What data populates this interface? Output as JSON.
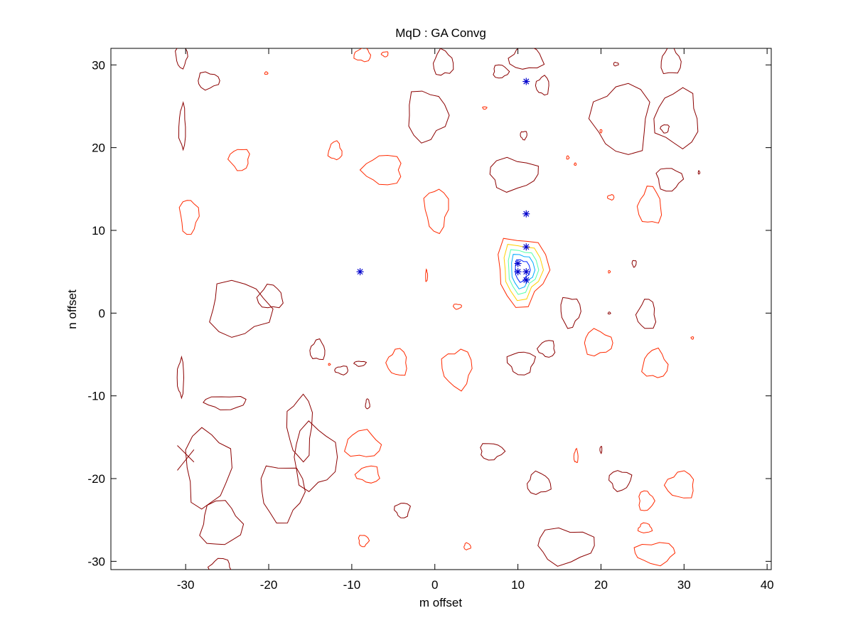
{
  "chart_data": {
    "type": "contour",
    "title": "MqD : GA Convg",
    "xlabel": "m offset",
    "ylabel": "n offset",
    "xlim": [
      -39,
      40.5
    ],
    "ylim": [
      -31,
      32
    ],
    "xticks": [
      -30,
      -20,
      -10,
      0,
      10,
      20,
      30,
      40
    ],
    "yticks": [
      -30,
      -20,
      -10,
      0,
      10,
      20,
      30
    ],
    "xtick_labels": [
      "-30",
      "-20",
      "-10",
      "0",
      "10",
      "20",
      "30",
      "40"
    ],
    "ytick_labels": [
      "-30",
      "-20",
      "-10",
      "0",
      "10",
      "20",
      "30"
    ],
    "grid": false,
    "contour_peak": {
      "center": [
        10.5,
        5.2
      ],
      "levels": [
        {
          "rx": 3.0,
          "ry": 4.1,
          "color": "#ff2a00"
        },
        {
          "rx": 2.3,
          "ry": 3.3,
          "color": "#ffd000"
        },
        {
          "rx": 1.8,
          "ry": 2.6,
          "color": "#55ffaa"
        },
        {
          "rx": 1.4,
          "ry": 2.0,
          "color": "#00aaff"
        },
        {
          "rx": 0.9,
          "ry": 1.3,
          "color": "#0022ff"
        }
      ]
    },
    "contour_blobs": [
      {
        "cx": -30.5,
        "cy": 31,
        "rx": 0.7,
        "ry": 1.3,
        "color": "#8b0000"
      },
      {
        "cx": -27.3,
        "cy": 28.1,
        "rx": 1.3,
        "ry": 1.0,
        "color": "#8b0000"
      },
      {
        "cx": -20.3,
        "cy": 29,
        "rx": 0.2,
        "ry": 0.15,
        "color": "#ff2a00"
      },
      {
        "cx": -30.4,
        "cy": 22.5,
        "rx": 0.4,
        "ry": 2.6,
        "color": "#8b0000"
      },
      {
        "cx": -23.5,
        "cy": 18.6,
        "rx": 1.2,
        "ry": 1.3,
        "color": "#ff2a00"
      },
      {
        "cx": -29.6,
        "cy": 11.7,
        "rx": 1.1,
        "ry": 2.1,
        "color": "#ff2a00"
      },
      {
        "cx": -23.6,
        "cy": 0.5,
        "rx": 3.6,
        "ry": 3.3,
        "color": "#8b0000"
      },
      {
        "cx": -19.8,
        "cy": 1.9,
        "rx": 1.5,
        "ry": 1.4,
        "color": "#8b0000"
      },
      {
        "cx": -30.6,
        "cy": -7.8,
        "rx": 0.4,
        "ry": 2.2,
        "color": "#8b0000"
      },
      {
        "cx": -25.2,
        "cy": -10.8,
        "rx": 2.5,
        "ry": 0.8,
        "color": "#8b0000"
      },
      {
        "cx": -27.4,
        "cy": -18.7,
        "rx": 2.7,
        "ry": 4.6,
        "color": "#8b0000"
      },
      {
        "cx": -25.8,
        "cy": -25.5,
        "rx": 2.4,
        "ry": 2.7,
        "color": "#8b0000"
      },
      {
        "cx": -25.8,
        "cy": -30.7,
        "rx": 1.3,
        "ry": 1.0,
        "color": "#8b0000"
      },
      {
        "cx": -16.2,
        "cy": -13.8,
        "rx": 1.5,
        "ry": 3.8,
        "color": "#8b0000"
      },
      {
        "cx": -18.4,
        "cy": -21.6,
        "rx": 2.6,
        "ry": 3.4,
        "color": "#8b0000"
      },
      {
        "cx": -14.5,
        "cy": -17.4,
        "rx": 2.6,
        "ry": 3.8,
        "color": "#8b0000"
      },
      {
        "cx": -8.7,
        "cy": -15.9,
        "rx": 2.1,
        "ry": 1.6,
        "color": "#ff2a00"
      },
      {
        "cx": -8.0,
        "cy": -19.5,
        "rx": 1.4,
        "ry": 1.0,
        "color": "#ff2a00"
      },
      {
        "cx": -3.9,
        "cy": -23.8,
        "rx": 0.9,
        "ry": 0.9,
        "color": "#8b0000"
      },
      {
        "cx": -8.6,
        "cy": -27.5,
        "rx": 0.6,
        "ry": 0.7,
        "color": "#ff2a00"
      },
      {
        "cx": 3.9,
        "cy": -28.2,
        "rx": 0.4,
        "ry": 0.4,
        "color": "#ff2a00"
      },
      {
        "cx": -14.1,
        "cy": -4.5,
        "rx": 0.9,
        "ry": 1.2,
        "color": "#8b0000"
      },
      {
        "cx": -11.2,
        "cy": -6.9,
        "rx": 0.8,
        "ry": 0.5,
        "color": "#8b0000"
      },
      {
        "cx": -9.0,
        "cy": -6.1,
        "rx": 0.7,
        "ry": 0.3,
        "color": "#8b0000"
      },
      {
        "cx": -12.7,
        "cy": -6.2,
        "rx": 0.12,
        "ry": 0.12,
        "color": "#ff2a00"
      },
      {
        "cx": -8.1,
        "cy": -11.0,
        "rx": 0.25,
        "ry": 0.6,
        "color": "#8b0000"
      },
      {
        "cx": -4.5,
        "cy": -6.0,
        "rx": 1.2,
        "ry": 1.6,
        "color": "#ff2a00"
      },
      {
        "cx": 2.7,
        "cy": -6.7,
        "rx": 1.8,
        "ry": 2.3,
        "color": "#ff2a00"
      },
      {
        "cx": 2.7,
        "cy": 0.8,
        "rx": 0.5,
        "ry": 0.3,
        "color": "#ff2a00"
      },
      {
        "cx": -1.0,
        "cy": 4.5,
        "rx": 0.12,
        "ry": 0.7,
        "color": "#ff2a00"
      },
      {
        "cx": -12.0,
        "cy": 19.6,
        "rx": 0.8,
        "ry": 1.1,
        "color": "#ff2a00"
      },
      {
        "cx": -6.2,
        "cy": 17.3,
        "rx": 2.3,
        "ry": 1.8,
        "color": "#ff2a00"
      },
      {
        "cx": 0.2,
        "cy": 12.5,
        "rx": 1.4,
        "ry": 2.6,
        "color": "#ff2a00"
      },
      {
        "cx": -1.0,
        "cy": 23.9,
        "rx": 2.4,
        "ry": 3.0,
        "color": "#8b0000"
      },
      {
        "cx": 1.0,
        "cy": 30.2,
        "rx": 1.2,
        "ry": 1.5,
        "color": "#8b0000"
      },
      {
        "cx": -8.7,
        "cy": 31.2,
        "rx": 1.0,
        "ry": 0.8,
        "color": "#ff2a00"
      },
      {
        "cx": -6.0,
        "cy": 31.3,
        "rx": 0.4,
        "ry": 0.3,
        "color": "#ff2a00"
      },
      {
        "cx": 6.0,
        "cy": 24.8,
        "rx": 0.25,
        "ry": 0.15,
        "color": "#ff2a00"
      },
      {
        "cx": 7.9,
        "cy": 29.2,
        "rx": 0.9,
        "ry": 0.8,
        "color": "#8b0000"
      },
      {
        "cx": 11.0,
        "cy": 30.8,
        "rx": 2.0,
        "ry": 1.4,
        "color": "#8b0000"
      },
      {
        "cx": 13.0,
        "cy": 27.5,
        "rx": 0.8,
        "ry": 1.1,
        "color": "#8b0000"
      },
      {
        "cx": 10.7,
        "cy": 21.5,
        "rx": 0.4,
        "ry": 0.5,
        "color": "#8b0000"
      },
      {
        "cx": 9.4,
        "cy": 16.8,
        "rx": 2.9,
        "ry": 1.9,
        "color": "#8b0000"
      },
      {
        "cx": 16.0,
        "cy": 18.8,
        "rx": 0.15,
        "ry": 0.2,
        "color": "#ff2a00"
      },
      {
        "cx": 16.9,
        "cy": 18.0,
        "rx": 0.12,
        "ry": 0.15,
        "color": "#ff2a00"
      },
      {
        "cx": 22.5,
        "cy": 23.5,
        "rx": 3.4,
        "ry": 4.2,
        "color": "#8b0000"
      },
      {
        "cx": 20.0,
        "cy": 22.0,
        "rx": 0.12,
        "ry": 0.2,
        "color": "#ff2a00"
      },
      {
        "cx": 21.8,
        "cy": 30.1,
        "rx": 0.3,
        "ry": 0.2,
        "color": "#8b0000"
      },
      {
        "cx": 28.4,
        "cy": 30.4,
        "rx": 1.2,
        "ry": 1.6,
        "color": "#8b0000"
      },
      {
        "cx": 29.2,
        "cy": 23.5,
        "rx": 2.6,
        "ry": 3.4,
        "color": "#8b0000"
      },
      {
        "cx": 27.7,
        "cy": 22.3,
        "rx": 0.5,
        "ry": 0.5,
        "color": "#8b0000"
      },
      {
        "cx": 28.2,
        "cy": 16.2,
        "rx": 1.5,
        "ry": 1.4,
        "color": "#8b0000"
      },
      {
        "cx": 31.8,
        "cy": 17.0,
        "rx": 0.1,
        "ry": 0.2,
        "color": "#8b0000"
      },
      {
        "cx": 25.9,
        "cy": 12.9,
        "rx": 1.4,
        "ry": 2.2,
        "color": "#ff2a00"
      },
      {
        "cx": 21.2,
        "cy": 14.0,
        "rx": 0.4,
        "ry": 0.3,
        "color": "#ff2a00"
      },
      {
        "cx": 24.0,
        "cy": 6.0,
        "rx": 0.25,
        "ry": 0.4,
        "color": "#8b0000"
      },
      {
        "cx": 21.0,
        "cy": 5.0,
        "rx": 0.12,
        "ry": 0.15,
        "color": "#ff2a00"
      },
      {
        "cx": 21.0,
        "cy": 0.0,
        "rx": 0.15,
        "ry": 0.12,
        "color": "#8b0000"
      },
      {
        "cx": 25.5,
        "cy": -0.2,
        "rx": 1.1,
        "ry": 1.8,
        "color": "#8b0000"
      },
      {
        "cx": 31.0,
        "cy": -3.0,
        "rx": 0.15,
        "ry": 0.15,
        "color": "#ff2a00"
      },
      {
        "cx": 16.3,
        "cy": 0.2,
        "rx": 1.2,
        "ry": 1.8,
        "color": "#8b0000"
      },
      {
        "cx": 19.6,
        "cy": -3.6,
        "rx": 1.7,
        "ry": 1.5,
        "color": "#ff2a00"
      },
      {
        "cx": 26.5,
        "cy": -6.2,
        "rx": 1.5,
        "ry": 1.7,
        "color": "#ff2a00"
      },
      {
        "cx": 13.5,
        "cy": -4.3,
        "rx": 1.0,
        "ry": 1.0,
        "color": "#8b0000"
      },
      {
        "cx": 10.4,
        "cy": -6.0,
        "rx": 1.6,
        "ry": 1.4,
        "color": "#8b0000"
      },
      {
        "cx": 6.8,
        "cy": -16.7,
        "rx": 1.4,
        "ry": 1.0,
        "color": "#8b0000"
      },
      {
        "cx": 12.5,
        "cy": -20.6,
        "rx": 1.4,
        "ry": 1.3,
        "color": "#8b0000"
      },
      {
        "cx": 17.0,
        "cy": -17.3,
        "rx": 0.25,
        "ry": 0.8,
        "color": "#ff2a00"
      },
      {
        "cx": 20.0,
        "cy": -16.5,
        "rx": 0.12,
        "ry": 0.4,
        "color": "#8b0000"
      },
      {
        "cx": 22.3,
        "cy": -20.2,
        "rx": 1.3,
        "ry": 1.2,
        "color": "#8b0000"
      },
      {
        "cx": 25.4,
        "cy": -22.7,
        "rx": 0.9,
        "ry": 1.2,
        "color": "#ff2a00"
      },
      {
        "cx": 25.3,
        "cy": -26.0,
        "rx": 0.8,
        "ry": 0.6,
        "color": "#ff2a00"
      },
      {
        "cx": 29.6,
        "cy": -20.8,
        "rx": 1.7,
        "ry": 1.6,
        "color": "#ff2a00"
      },
      {
        "cx": 26.5,
        "cy": -29.0,
        "rx": 2.4,
        "ry": 1.3,
        "color": "#ff2a00"
      },
      {
        "cx": 15.7,
        "cy": -28.1,
        "rx": 3.4,
        "ry": 2.1,
        "color": "#8b0000"
      }
    ],
    "scatter_points": [
      {
        "x": 11,
        "y": 28
      },
      {
        "x": 11,
        "y": 12
      },
      {
        "x": 11,
        "y": 8
      },
      {
        "x": 10,
        "y": 6
      },
      {
        "x": 10,
        "y": 5
      },
      {
        "x": 11,
        "y": 5
      },
      {
        "x": 11,
        "y": 4
      },
      {
        "x": -9,
        "y": 5
      }
    ],
    "marker_color": "#0000cc",
    "extra_marks": [
      {
        "x1": -31.0,
        "y1": -16.0,
        "x2": -29.0,
        "y2": -18.0,
        "color": "#8b0000"
      },
      {
        "x1": -31.0,
        "y1": -19.0,
        "x2": -29.0,
        "y2": -16.5,
        "color": "#8b0000"
      }
    ]
  }
}
